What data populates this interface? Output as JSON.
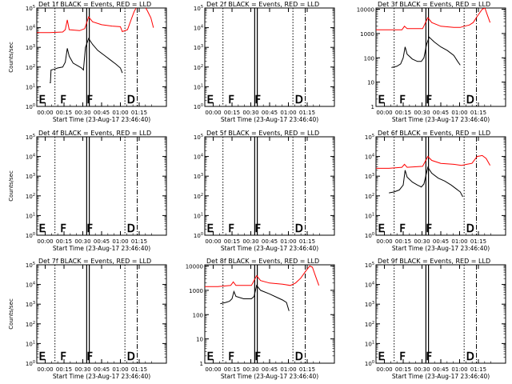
{
  "chart_data": [
    {
      "type": "line",
      "title": "Det 1f BLACK = Events, RED = LLD",
      "xlabel": "Start Time (23-Aug-17 23:46:40)",
      "ylabel": "Counts/sec",
      "scale": "log",
      "ytick_labels": [
        "10^0",
        "10^1",
        "10^2",
        "10^3",
        "10^4",
        "10^5"
      ],
      "xtick_labels": [
        "00:00",
        "00:15",
        "00:30",
        "00:45",
        "01:00",
        "01:15"
      ],
      "markers": [
        "E",
        "F",
        "F",
        "D"
      ],
      "series": [
        {
          "name": "Events",
          "color": "#000000",
          "points": [
            [
              0.1,
              1.2
            ],
            [
              0.105,
              1.2
            ],
            [
              0.11,
              1.85
            ],
            [
              0.14,
              1.9
            ],
            [
              0.16,
              1.95
            ],
            [
              0.2,
              2.0
            ],
            [
              0.22,
              2.25
            ],
            [
              0.235,
              2.95
            ],
            [
              0.25,
              2.55
            ],
            [
              0.28,
              2.2
            ],
            [
              0.32,
              2.05
            ],
            [
              0.345,
              1.95
            ],
            [
              0.36,
              1.85
            ],
            [
              0.375,
              3.0
            ],
            [
              0.4,
              3.45
            ],
            [
              0.43,
              3.15
            ],
            [
              0.47,
              2.85
            ],
            [
              0.52,
              2.6
            ],
            [
              0.57,
              2.35
            ],
            [
              0.61,
              2.15
            ],
            [
              0.645,
              1.95
            ],
            [
              0.66,
              1.7
            ]
          ]
        },
        {
          "name": "LLD",
          "color": "#ff0000",
          "points": [
            [
              0.0,
              3.75
            ],
            [
              0.1,
              3.75
            ],
            [
              0.2,
              3.78
            ],
            [
              0.22,
              3.9
            ],
            [
              0.235,
              4.4
            ],
            [
              0.25,
              3.9
            ],
            [
              0.33,
              3.85
            ],
            [
              0.37,
              3.95
            ],
            [
              0.4,
              4.55
            ],
            [
              0.43,
              4.3
            ],
            [
              0.5,
              4.15
            ],
            [
              0.58,
              4.08
            ],
            [
              0.645,
              4.05
            ],
            [
              0.66,
              3.8
            ],
            [
              0.7,
              3.9
            ],
            [
              0.73,
              4.45
            ],
            [
              0.75,
              4.8
            ],
            [
              0.77,
              5.05
            ],
            [
              0.8,
              5.05
            ],
            [
              0.83,
              5.1
            ],
            [
              0.85,
              4.9
            ],
            [
              0.88,
              4.5
            ],
            [
              0.9,
              4.0
            ]
          ]
        }
      ],
      "ylim": [
        0,
        5
      ],
      "xlim": [
        0,
        1
      ]
    },
    {
      "type": "line",
      "title": "Det 2f BLACK = Events, RED = LLD",
      "xlabel": "Start Time (23-Aug-17 23:46:40)",
      "ylabel": "",
      "scale": "log",
      "ytick_labels": [
        "10^0",
        "10^1",
        "10^2",
        "10^3",
        "10^4",
        "10^5"
      ],
      "xtick_labels": [
        "00:00",
        "00:15",
        "00:30",
        "00:45",
        "01:00",
        "01:15"
      ],
      "markers": [
        "E",
        "F",
        "F",
        "D"
      ],
      "series": [],
      "ylim": [
        0,
        5
      ],
      "xlim": [
        0,
        1
      ]
    },
    {
      "type": "line",
      "title": "Det 3f BLACK = Events, RED = LLD",
      "xlabel": "Start Time (23-Aug-17 23:46:40)",
      "ylabel": "",
      "scale": "log",
      "ytick_labels": [
        "1",
        "10",
        "100",
        "1000",
        "10000"
      ],
      "xtick_labels": [
        "00:00",
        "00:15",
        "00:30",
        "00:45",
        "01:00",
        "01:15"
      ],
      "markers": [
        "E",
        "F",
        "F",
        "D"
      ],
      "series": [
        {
          "name": "Events",
          "color": "#000000",
          "points": [
            [
              0.12,
              1.6
            ],
            [
              0.16,
              1.65
            ],
            [
              0.19,
              1.75
            ],
            [
              0.21,
              2.0
            ],
            [
              0.225,
              2.45
            ],
            [
              0.24,
              2.15
            ],
            [
              0.28,
              1.95
            ],
            [
              0.32,
              1.85
            ],
            [
              0.35,
              1.85
            ],
            [
              0.37,
              2.0
            ],
            [
              0.39,
              2.55
            ],
            [
              0.41,
              2.85
            ],
            [
              0.45,
              2.65
            ],
            [
              0.5,
              2.45
            ],
            [
              0.55,
              2.3
            ],
            [
              0.6,
              2.1
            ],
            [
              0.63,
              1.85
            ],
            [
              0.65,
              1.7
            ]
          ]
        },
        {
          "name": "LLD",
          "color": "#ff0000",
          "points": [
            [
              0.0,
              3.15
            ],
            [
              0.1,
              3.15
            ],
            [
              0.2,
              3.15
            ],
            [
              0.22,
              3.3
            ],
            [
              0.24,
              3.2
            ],
            [
              0.36,
              3.2
            ],
            [
              0.4,
              3.65
            ],
            [
              0.43,
              3.45
            ],
            [
              0.5,
              3.3
            ],
            [
              0.6,
              3.25
            ],
            [
              0.65,
              3.25
            ],
            [
              0.68,
              3.3
            ],
            [
              0.72,
              3.35
            ],
            [
              0.75,
              3.45
            ],
            [
              0.78,
              3.7
            ],
            [
              0.82,
              4.0
            ],
            [
              0.84,
              4.05
            ],
            [
              0.86,
              3.75
            ],
            [
              0.88,
              3.45
            ]
          ]
        }
      ],
      "ylim": [
        0,
        4.05
      ],
      "xlim": [
        0,
        1
      ]
    },
    {
      "type": "line",
      "title": "Det 4f BLACK = Events, RED = LLD",
      "xlabel": "Start Time (23-Aug-17 23:46:40)",
      "ylabel": "Counts/sec",
      "scale": "log",
      "ytick_labels": [
        "10^0",
        "10^1",
        "10^2",
        "10^3",
        "10^4",
        "10^5"
      ],
      "xtick_labels": [
        "00:00",
        "00:15",
        "00:30",
        "00:45",
        "01:00",
        "01:15"
      ],
      "markers": [
        "E",
        "F",
        "F",
        "D"
      ],
      "series": [],
      "ylim": [
        0,
        5
      ],
      "xlim": [
        0,
        1
      ]
    },
    {
      "type": "line",
      "title": "Det 5f BLACK = Events, RED = LLD",
      "xlabel": "Start Time (23-Aug-17 23:46:40)",
      "ylabel": "",
      "scale": "log",
      "ytick_labels": [
        "10^0",
        "10^1",
        "10^2",
        "10^3",
        "10^4",
        "10^5"
      ],
      "xtick_labels": [
        "00:00",
        "00:15",
        "00:30",
        "00:45",
        "01:00",
        "01:15"
      ],
      "markers": [
        "E",
        "F",
        "F",
        "D"
      ],
      "series": [],
      "ylim": [
        0,
        5
      ],
      "xlim": [
        0,
        1
      ]
    },
    {
      "type": "line",
      "title": "Det 6f BLACK = Events, RED = LLD",
      "xlabel": "Start Time (23-Aug-17 23:46:40)",
      "ylabel": "",
      "scale": "log",
      "ytick_labels": [
        "10^0",
        "10^1",
        "10^2",
        "10^3",
        "10^4",
        "10^5"
      ],
      "xtick_labels": [
        "00:00",
        "00:15",
        "00:30",
        "00:45",
        "01:00",
        "01:15"
      ],
      "markers": [
        "E",
        "F",
        "F",
        "D"
      ],
      "series": [
        {
          "name": "Events",
          "color": "#000000",
          "points": [
            [
              0.1,
              2.15
            ],
            [
              0.14,
              2.2
            ],
            [
              0.18,
              2.3
            ],
            [
              0.21,
              2.55
            ],
            [
              0.225,
              3.3
            ],
            [
              0.24,
              2.95
            ],
            [
              0.28,
              2.7
            ],
            [
              0.32,
              2.55
            ],
            [
              0.35,
              2.45
            ],
            [
              0.37,
              2.6
            ],
            [
              0.4,
              3.45
            ],
            [
              0.43,
              3.15
            ],
            [
              0.48,
              2.9
            ],
            [
              0.53,
              2.75
            ],
            [
              0.58,
              2.55
            ],
            [
              0.62,
              2.35
            ],
            [
              0.65,
              2.2
            ],
            [
              0.67,
              1.95
            ]
          ]
        },
        {
          "name": "LLD",
          "color": "#ff0000",
          "points": [
            [
              0.0,
              3.4
            ],
            [
              0.1,
              3.4
            ],
            [
              0.2,
              3.45
            ],
            [
              0.22,
              3.6
            ],
            [
              0.24,
              3.45
            ],
            [
              0.36,
              3.5
            ],
            [
              0.4,
              4.0
            ],
            [
              0.43,
              3.8
            ],
            [
              0.5,
              3.65
            ],
            [
              0.6,
              3.6
            ],
            [
              0.66,
              3.55
            ],
            [
              0.7,
              3.6
            ],
            [
              0.74,
              3.65
            ],
            [
              0.78,
              4.0
            ],
            [
              0.82,
              4.05
            ],
            [
              0.85,
              3.9
            ],
            [
              0.88,
              3.55
            ]
          ]
        }
      ],
      "ylim": [
        0,
        5
      ],
      "xlim": [
        0,
        1
      ]
    },
    {
      "type": "line",
      "title": "Det 7f BLACK = Events, RED = LLD",
      "xlabel": "Start Time (23-Aug-17 23:46:40)",
      "ylabel": "Counts/sec",
      "scale": "log",
      "ytick_labels": [
        "10^0",
        "10^1",
        "10^2",
        "10^3",
        "10^4",
        "10^5"
      ],
      "xtick_labels": [
        "00:00",
        "00:15",
        "00:30",
        "00:45",
        "01:00",
        "01:15"
      ],
      "markers": [
        "E",
        "F",
        "F",
        "D"
      ],
      "series": [],
      "ylim": [
        0,
        5
      ],
      "xlim": [
        0,
        1
      ]
    },
    {
      "type": "line",
      "title": "Det 8f BLACK = Events, RED = LLD",
      "xlabel": "Start Time (23-Aug-17 23:46:40)",
      "ylabel": "",
      "scale": "log",
      "ytick_labels": [
        "1",
        "10",
        "100",
        "1000",
        "10000"
      ],
      "xtick_labels": [
        "00:00",
        "00:15",
        "00:30",
        "00:45",
        "01:00",
        "01:15"
      ],
      "markers": [
        "E",
        "F",
        "F",
        "D"
      ],
      "series": [
        {
          "name": "Events",
          "color": "#000000",
          "points": [
            [
              0.12,
              2.45
            ],
            [
              0.16,
              2.5
            ],
            [
              0.19,
              2.55
            ],
            [
              0.21,
              2.65
            ],
            [
              0.225,
              2.95
            ],
            [
              0.24,
              2.75
            ],
            [
              0.3,
              2.65
            ],
            [
              0.36,
              2.65
            ],
            [
              0.38,
              2.75
            ],
            [
              0.4,
              3.2
            ],
            [
              0.43,
              3.0
            ],
            [
              0.5,
              2.85
            ],
            [
              0.56,
              2.7
            ],
            [
              0.6,
              2.6
            ],
            [
              0.63,
              2.5
            ],
            [
              0.65,
              2.15
            ]
          ]
        },
        {
          "name": "LLD",
          "color": "#ff0000",
          "points": [
            [
              0.0,
              3.15
            ],
            [
              0.1,
              3.15
            ],
            [
              0.2,
              3.2
            ],
            [
              0.22,
              3.35
            ],
            [
              0.24,
              3.2
            ],
            [
              0.36,
              3.2
            ],
            [
              0.4,
              3.6
            ],
            [
              0.43,
              3.4
            ],
            [
              0.5,
              3.3
            ],
            [
              0.6,
              3.25
            ],
            [
              0.66,
              3.2
            ],
            [
              0.7,
              3.3
            ],
            [
              0.74,
              3.5
            ],
            [
              0.78,
              3.8
            ],
            [
              0.81,
              4.0
            ],
            [
              0.83,
              3.95
            ],
            [
              0.86,
              3.5
            ],
            [
              0.88,
              3.2
            ]
          ]
        }
      ],
      "ylim": [
        0,
        4.05
      ],
      "xlim": [
        0,
        1
      ]
    },
    {
      "type": "line",
      "title": "Det 9f BLACK = Events, RED = LLD",
      "xlabel": "Start Time (23-Aug-17 23:46:40)",
      "ylabel": "",
      "scale": "log",
      "ytick_labels": [
        "10^0",
        "10^1",
        "10^2",
        "10^3",
        "10^4",
        "10^5"
      ],
      "xtick_labels": [
        "00:00",
        "00:15",
        "00:30",
        "00:45",
        "01:00",
        "01:15"
      ],
      "markers": [
        "E",
        "F",
        "F",
        "D"
      ],
      "series": [],
      "ylim": [
        0,
        5
      ],
      "xlim": [
        0,
        1
      ]
    }
  ]
}
